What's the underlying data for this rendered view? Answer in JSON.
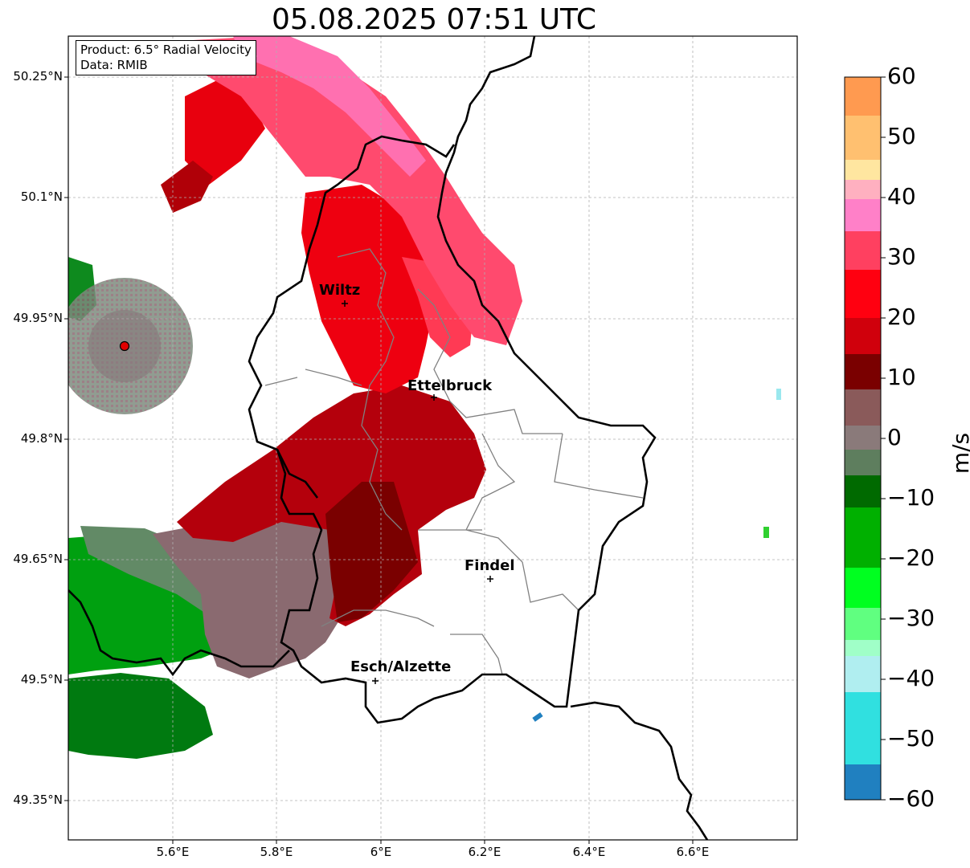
{
  "title": "05.08.2025 07:51 UTC",
  "info": {
    "product": "Product: 6.5° Radial Velocity",
    "data": "Data: RMIB"
  },
  "lat_labels": [
    "50.25°N",
    "50.1°N",
    "49.95°N",
    "49.8°N",
    "49.65°N",
    "49.5°N",
    "49.35°N"
  ],
  "lon_labels": [
    "5.6°E",
    "5.8°E",
    "6°E",
    "6.2°E",
    "6.4°E",
    "6.6°E"
  ],
  "cities": [
    {
      "name": "Wiltz"
    },
    {
      "name": "Ettelbruck"
    },
    {
      "name": "Findel"
    },
    {
      "name": "Esch/Alzette"
    }
  ],
  "colorbar": {
    "label": "m/s",
    "ticks": [
      "60",
      "50",
      "40",
      "30",
      "20",
      "10",
      "0",
      "−10",
      "−20",
      "−30",
      "−40",
      "−50",
      "−60"
    ],
    "range": [
      -60,
      60
    ],
    "colors": [
      "#ff9a50",
      "#ffc880",
      "#ffe6a0",
      "#ffb0c0",
      "#ff80c8",
      "#ff4060",
      "#ff0010",
      "#d0000c",
      "#7a0000",
      "#8a5a5a",
      "#6e8a6e",
      "#006a00",
      "#00b000",
      "#00ff20",
      "#60ff80",
      "#a0ffe0",
      "#a0eaf0",
      "#30e0e0",
      "#2080c0"
    ]
  },
  "colors": {
    "pink": "#ff5078",
    "red": "#ee0010",
    "darkred": "#aa0008",
    "maroon": "#760000",
    "mauve": "#8a6a70",
    "sage": "#628a66",
    "green": "#009a10",
    "radar": "#e00000"
  }
}
